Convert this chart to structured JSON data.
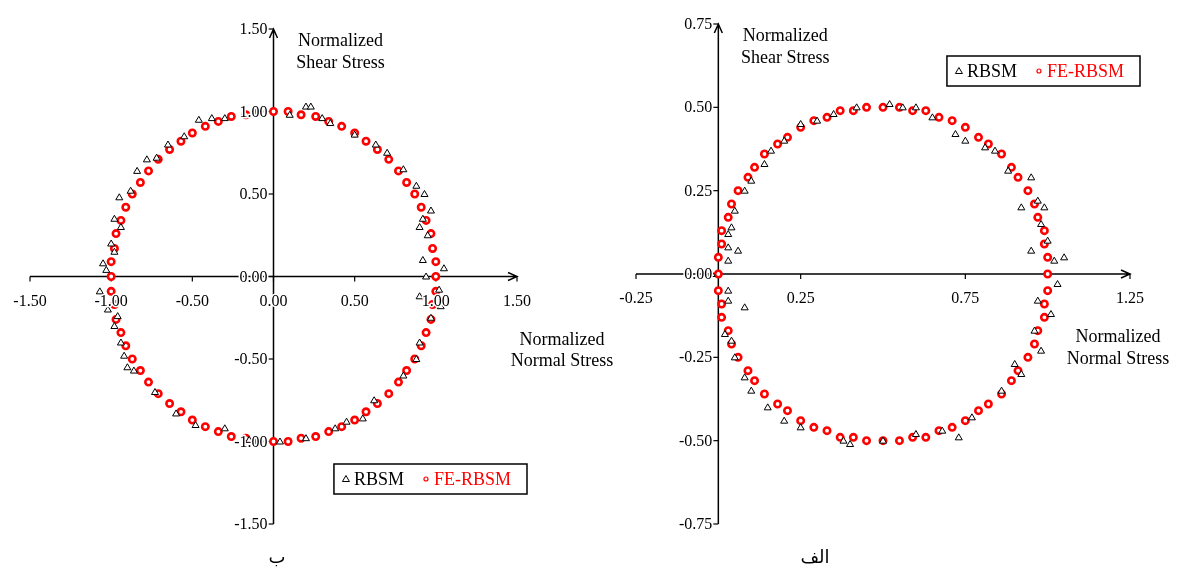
{
  "chart_data": [
    {
      "type": "scatter",
      "xlabel": "Normalized\nNormal Stress",
      "ylabel": "Normalized\nShear Stress",
      "xlim": [
        -1.5,
        1.5
      ],
      "ylim": [
        -1.5,
        1.5
      ],
      "xticks": [
        {
          "value": -1.5,
          "label": "-1.50"
        },
        {
          "value": -1,
          "label": "-1.00"
        },
        {
          "value": -0.5,
          "label": "-0.50"
        },
        {
          "value": 0,
          "label": "0.00"
        },
        {
          "value": 0.5,
          "label": "0.50"
        },
        {
          "value": 1,
          "label": "1.00"
        },
        {
          "value": 1.5,
          "label": "1.50"
        }
      ],
      "yticks": [
        {
          "value": -1.5,
          "label": "-1.50"
        },
        {
          "value": -1,
          "label": "-1.00"
        },
        {
          "value": -0.5,
          "label": "-0.50"
        },
        {
          "value": 0,
          "label": "0.00"
        },
        {
          "value": 0.5,
          "label": "0.50"
        },
        {
          "value": 1,
          "label": "1.00"
        },
        {
          "value": 1.5,
          "label": "1.50"
        }
      ],
      "legend": "bottom right",
      "annotations": [
        "ب"
      ],
      "series": [
        {
          "name": "RBSM",
          "color": "#000000",
          "marker": "triangle",
          "x": [
            0.2,
            0.23,
            -0.46,
            -0.65,
            -0.78,
            -0.84,
            -0.95,
            -0.98,
            -0.94,
            -0.98,
            -1.05,
            -1.03,
            -1.07,
            -1.02,
            -0.96,
            -0.98,
            -0.94,
            -0.92,
            -0.86,
            -0.73,
            -0.6,
            -0.48,
            -0.3,
            -0.15,
            0.04,
            0.2,
            0.38,
            0.55,
            0.62,
            0.8,
            0.88,
            0.9,
            0.97,
            1.03,
            1.02,
            0.9,
            1.05,
            0.94,
            0.92,
            0.95,
            0.9,
            0.97,
            0.93,
            0.88,
            0.8,
            0.7,
            0.63,
            0.5,
            0.35,
            0.3,
            0.1,
            -0.38,
            -0.3,
            -0.55,
            -0.72,
            -0.88,
            -1.0,
            -0.9,
            0.45,
            0.92
          ],
          "values": [
            1.03,
            1.03,
            0.95,
            0.8,
            0.71,
            0.64,
            0.48,
            0.35,
            0.3,
            0.15,
            0.08,
            0.04,
            -0.09,
            -0.2,
            -0.24,
            -0.3,
            -0.4,
            -0.48,
            -0.57,
            -0.7,
            -0.83,
            -0.9,
            -0.92,
            -0.99,
            -1.0,
            -0.98,
            -0.92,
            -0.86,
            -0.75,
            -0.6,
            -0.5,
            -0.4,
            -0.25,
            -0.18,
            -0.08,
            -0.12,
            0.05,
            0.0,
            0.1,
            0.25,
            0.3,
            0.4,
            0.5,
            0.55,
            0.65,
            0.75,
            0.8,
            0.86,
            0.93,
            0.96,
            0.98,
            0.96,
            0.96,
            0.85,
            0.72,
            0.52,
            0.2,
            -0.55,
            -0.88,
            0.35
          ]
        },
        {
          "name": "FE-RBSM",
          "color": "#ff0000",
          "marker": "circle",
          "x": [
            1.0,
            1.0,
            0.98,
            0.97,
            0.94,
            0.91,
            0.87,
            0.82,
            0.77,
            0.71,
            0.64,
            0.57,
            0.5,
            0.42,
            0.34,
            0.26,
            0.17,
            0.09,
            0.0,
            -0.09,
            -0.17,
            -0.26,
            -0.34,
            -0.42,
            -0.5,
            -0.57,
            -0.64,
            -0.71,
            -0.77,
            -0.82,
            -0.87,
            -0.91,
            -0.94,
            -0.97,
            -0.98,
            -1.0,
            -1.0,
            -1.0,
            -0.98,
            -0.97,
            -0.94,
            -0.91,
            -0.87,
            -0.82,
            -0.77,
            -0.71,
            -0.64,
            -0.57,
            -0.5,
            -0.42,
            -0.34,
            -0.26,
            -0.17,
            -0.09,
            0.0,
            0.09,
            0.17,
            0.26,
            0.34,
            0.42,
            0.5,
            0.57,
            0.64,
            0.71,
            0.77,
            0.82,
            0.87,
            0.91,
            0.94,
            0.97,
            0.98,
            1.0
          ],
          "values": [
            0.0,
            0.09,
            0.17,
            0.26,
            0.34,
            0.42,
            0.5,
            0.57,
            0.64,
            0.71,
            0.77,
            0.82,
            0.87,
            0.91,
            0.94,
            0.97,
            0.98,
            1.0,
            1.0,
            1.0,
            0.98,
            0.97,
            0.94,
            0.91,
            0.87,
            0.82,
            0.77,
            0.71,
            0.64,
            0.57,
            0.5,
            0.42,
            0.34,
            0.26,
            0.17,
            0.09,
            0.0,
            -0.09,
            -0.17,
            -0.26,
            -0.34,
            -0.42,
            -0.5,
            -0.57,
            -0.64,
            -0.71,
            -0.77,
            -0.82,
            -0.87,
            -0.91,
            -0.94,
            -0.97,
            -0.98,
            -1.0,
            -1.0,
            -1.0,
            -0.98,
            -0.97,
            -0.94,
            -0.91,
            -0.87,
            -0.82,
            -0.77,
            -0.71,
            -0.64,
            -0.57,
            -0.5,
            -0.42,
            -0.34,
            -0.26,
            -0.17,
            -0.09
          ]
        }
      ]
    },
    {
      "type": "scatter",
      "xlabel": "Normalized\nNormal Stress",
      "ylabel": "Normalized\nShear Stress",
      "xlim": [
        -0.25,
        1.25
      ],
      "ylim": [
        -0.75,
        0.75
      ],
      "xticks": [
        -0.25,
        0.25,
        0.75,
        1.25
      ],
      "yticks": [
        {
          "value": -0.75,
          "label": "-0.75"
        },
        {
          "value": -0.5,
          "label": "-0.50"
        },
        {
          "value": -0.25,
          "label": "-0.25"
        },
        {
          "value": 0,
          "label": "0.00"
        },
        {
          "value": 0.25,
          "label": "0.25"
        },
        {
          "value": 0.5,
          "label": "0.50"
        },
        {
          "value": 0.75,
          "label": "0.75"
        }
      ],
      "legend": "top right",
      "annotations": [
        "الف"
      ],
      "series": [
        {
          "name": "RBSM",
          "color": "#000000",
          "marker": "triangle",
          "x": [
            0.56,
            0.52,
            0.65,
            0.72,
            0.81,
            0.88,
            0.95,
            0.97,
            0.99,
            0.95,
            1.02,
            1.05,
            1.03,
            0.97,
            0.96,
            0.98,
            0.9,
            0.86,
            0.77,
            0.73,
            0.6,
            0.4,
            0.38,
            0.25,
            0.15,
            0.08,
            0.05,
            0.02,
            0.08,
            0.03,
            -0.02,
            0.03,
            0.06,
            0.04,
            0.03,
            0.08,
            0.1,
            0.14,
            0.2,
            0.25,
            0.35,
            0.42,
            0.6,
            0.75,
            0.92,
            1.0,
            1.01,
            0.92,
            0.68,
            0.5,
            0.2,
            0.1,
            0.04,
            0.03,
            0.03,
            0.05,
            0.16,
            0.3,
            0.84,
            0.98
          ],
          "values": [
            0.5,
            0.51,
            0.47,
            0.42,
            0.38,
            0.31,
            0.29,
            0.22,
            0.2,
            0.07,
            0.04,
            0.05,
            -0.03,
            -0.08,
            -0.17,
            -0.23,
            -0.27,
            -0.35,
            -0.43,
            -0.49,
            -0.48,
            -0.51,
            -0.5,
            -0.46,
            -0.4,
            -0.31,
            -0.25,
            -0.18,
            -0.1,
            -0.05,
            0.0,
            0.04,
            0.07,
            0.14,
            0.12,
            0.25,
            0.28,
            0.33,
            0.4,
            0.45,
            0.48,
            0.5,
            0.5,
            0.4,
            0.2,
            0.1,
            -0.12,
            -0.3,
            -0.47,
            -0.5,
            -0.44,
            -0.35,
            -0.2,
            -0.08,
            0.08,
            0.19,
            0.37,
            0.46,
            0.37,
            0.15
          ]
        },
        {
          "name": "FE-RBSM",
          "color": "#ff0000",
          "marker": "circle",
          "x": [
            1.0,
            1.0,
            0.99,
            0.99,
            0.97,
            0.96,
            0.94,
            0.91,
            0.89,
            0.86,
            0.82,
            0.79,
            0.75,
            0.71,
            0.67,
            0.63,
            0.59,
            0.55,
            0.5,
            0.45,
            0.41,
            0.37,
            0.33,
            0.29,
            0.25,
            0.21,
            0.18,
            0.14,
            0.11,
            0.09,
            0.06,
            0.04,
            0.03,
            0.01,
            0.01,
            0.0,
            0.0,
            0.0,
            0.01,
            0.01,
            0.03,
            0.04,
            0.06,
            0.09,
            0.11,
            0.14,
            0.18,
            0.21,
            0.25,
            0.29,
            0.33,
            0.37,
            0.41,
            0.45,
            0.5,
            0.55,
            0.59,
            0.63,
            0.67,
            0.71,
            0.75,
            0.79,
            0.82,
            0.86,
            0.89,
            0.91,
            0.94,
            0.96,
            0.97,
            0.99,
            0.99,
            1.0
          ],
          "values": [
            0.0,
            0.05,
            0.09,
            0.13,
            0.17,
            0.21,
            0.25,
            0.29,
            0.32,
            0.36,
            0.39,
            0.41,
            0.44,
            0.46,
            0.47,
            0.49,
            0.49,
            0.5,
            0.5,
            0.5,
            0.49,
            0.49,
            0.47,
            0.46,
            0.44,
            0.41,
            0.39,
            0.36,
            0.32,
            0.29,
            0.25,
            0.21,
            0.17,
            0.13,
            0.09,
            0.05,
            0.0,
            -0.05,
            -0.09,
            -0.13,
            -0.17,
            -0.21,
            -0.25,
            -0.29,
            -0.32,
            -0.36,
            -0.39,
            -0.41,
            -0.44,
            -0.46,
            -0.47,
            -0.49,
            -0.49,
            -0.5,
            -0.5,
            -0.5,
            -0.49,
            -0.49,
            -0.47,
            -0.46,
            -0.44,
            -0.41,
            -0.39,
            -0.36,
            -0.32,
            -0.29,
            -0.25,
            -0.21,
            -0.17,
            -0.13,
            -0.09,
            -0.05
          ]
        }
      ]
    }
  ]
}
